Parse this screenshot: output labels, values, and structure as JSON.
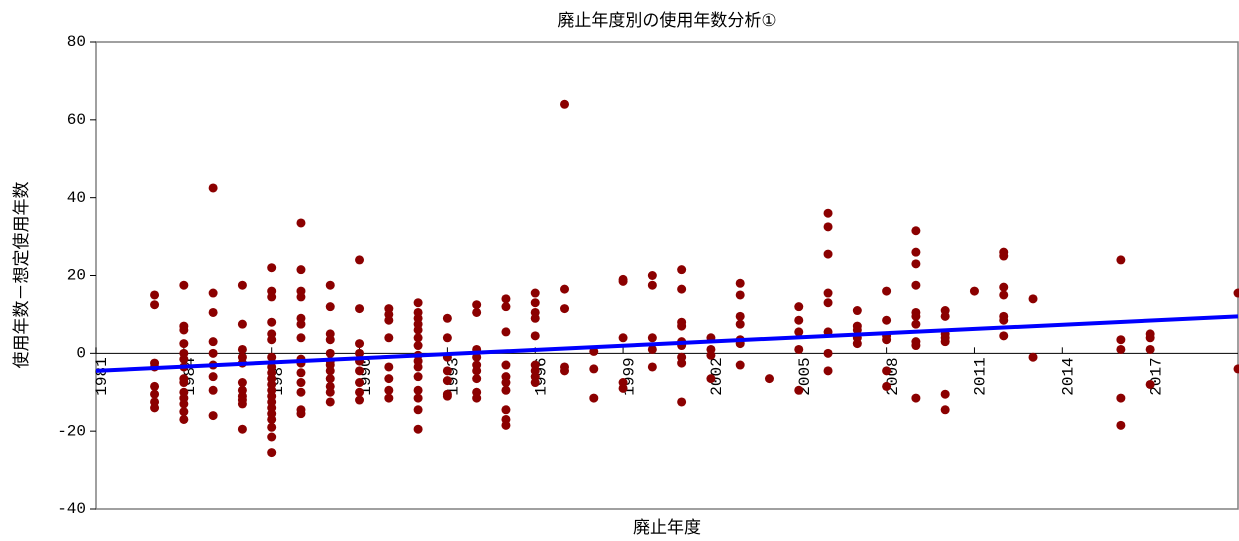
{
  "chart_data": {
    "type": "scatter",
    "title": "廃止年度別の使用年数分析①",
    "x_label": "廃止年度",
    "y_label": "使用年数－想定使用年数",
    "color": "#8b0000",
    "x": [
      1983,
      1983,
      1983,
      1983,
      1983,
      1983,
      1983,
      1983,
      1984,
      1984,
      1984,
      1984,
      1984,
      1984,
      1984,
      1984,
      1984,
      1984,
      1984,
      1984,
      1984,
      1984,
      1985,
      1985,
      1985,
      1985,
      1985,
      1985,
      1985,
      1985,
      1985,
      1986,
      1986,
      1986,
      1986,
      1986,
      1986,
      1986,
      1986,
      1986,
      1986,
      1986,
      1987,
      1987,
      1987,
      1987,
      1987,
      1987,
      1987,
      1987,
      1987,
      1987,
      1987,
      1987,
      1987,
      1987,
      1987,
      1987,
      1987,
      1987,
      1987,
      1987,
      1988,
      1988,
      1988,
      1988,
      1988,
      1988,
      1988,
      1988,
      1988,
      1988,
      1988,
      1988,
      1988,
      1988,
      1989,
      1989,
      1989,
      1989,
      1989,
      1989,
      1989,
      1989,
      1989,
      1989,
      1989,
      1989,
      1990,
      1990,
      1990,
      1990,
      1990,
      1990,
      1990,
      1990,
      1990,
      1991,
      1991,
      1991,
      1991,
      1991,
      1991,
      1991,
      1991,
      1992,
      1992,
      1992,
      1992,
      1992,
      1992,
      1992,
      1992,
      1992,
      1992,
      1992,
      1992,
      1992,
      1992,
      1992,
      1993,
      1993,
      1993,
      1993,
      1993,
      1993,
      1993,
      1994,
      1994,
      1994,
      1994,
      1994,
      1994,
      1994,
      1994,
      1994,
      1995,
      1995,
      1995,
      1995,
      1995,
      1995,
      1995,
      1995,
      1995,
      1995,
      1996,
      1996,
      1996,
      1996,
      1996,
      1996,
      1996,
      1996,
      1996,
      1997,
      1997,
      1997,
      1997,
      1997,
      1998,
      1998,
      1998,
      1999,
      1999,
      1999,
      1999,
      1999,
      2000,
      2000,
      2000,
      2000,
      2000,
      2001,
      2001,
      2001,
      2001,
      2001,
      2001,
      2001,
      2001,
      2001,
      2002,
      2002,
      2002,
      2002,
      2003,
      2003,
      2003,
      2003,
      2003,
      2003,
      2003,
      2004,
      2005,
      2005,
      2005,
      2005,
      2005,
      2006,
      2006,
      2006,
      2006,
      2006,
      2006,
      2006,
      2006,
      2007,
      2007,
      2007,
      2007,
      2007,
      2008,
      2008,
      2008,
      2008,
      2008,
      2008,
      2009,
      2009,
      2009,
      2009,
      2009,
      2009,
      2009,
      2009,
      2009,
      2009,
      2010,
      2010,
      2010,
      2010,
      2010,
      2010,
      2010,
      2011,
      2012,
      2012,
      2012,
      2012,
      2012,
      2012,
      2012,
      2013,
      2013,
      2016,
      2016,
      2016,
      2016,
      2016,
      2017,
      2017,
      2017,
      2017,
      2020,
      2020
    ],
    "values": [
      15,
      12.5,
      -2.5,
      -3.5,
      -8.5,
      -10.5,
      -12.5,
      -14,
      17.5,
      7,
      6,
      2.5,
      0,
      -1.5,
      -3.5,
      -6.5,
      -7.5,
      -10,
      -11.5,
      -13,
      -15,
      -17,
      42.5,
      15.5,
      10.5,
      3,
      0,
      -3,
      -6,
      -9.5,
      -16,
      17.5,
      7.5,
      1,
      -1,
      -2.5,
      -7.5,
      -9.5,
      -11,
      -12,
      -13,
      -19.5,
      22,
      16,
      14.5,
      8,
      5,
      3.5,
      -1,
      -3.5,
      -5,
      -6.5,
      -8,
      -9.5,
      -11,
      -12.5,
      -14,
      -15.5,
      -17,
      -19,
      -21.5,
      -25.5,
      33.5,
      21.5,
      16,
      14.5,
      9,
      7.5,
      4,
      -1.5,
      -2.5,
      -5,
      -7.5,
      -10,
      -14.5,
      -15.5,
      17.5,
      12,
      5,
      3.5,
      0,
      -2,
      -3,
      -4.5,
      -6.5,
      -8.5,
      -10,
      -12.5,
      24,
      11.5,
      2.5,
      0,
      -2,
      -4.5,
      -7.5,
      -10,
      -12,
      11.5,
      10,
      8.5,
      4,
      -3.5,
      -6.5,
      -9.5,
      -11.5,
      13,
      10.5,
      9,
      7.5,
      6,
      4,
      2,
      -0.5,
      -2,
      -3.5,
      -6,
      -9.5,
      -11.5,
      -14.5,
      -19.5,
      9,
      4,
      -1,
      -4.5,
      -7,
      -10.5,
      -11,
      12.5,
      10.5,
      1,
      -1,
      -3,
      -4.5,
      -6.5,
      -10,
      -11.5,
      14,
      12,
      5.5,
      -3,
      -6,
      -7.5,
      -9.5,
      -14.5,
      -17,
      -18.5,
      15.5,
      13,
      10.5,
      9,
      4.5,
      -3,
      -4.5,
      -6,
      -7.5,
      64,
      16.5,
      11.5,
      -3.5,
      -4.5,
      0.5,
      -4,
      -11.5,
      19,
      18.5,
      4,
      -7.5,
      -9,
      20,
      17.5,
      4,
      1,
      -3.5,
      21.5,
      16.5,
      8,
      7,
      3,
      2,
      -1,
      -2.5,
      -12.5,
      4,
      1,
      -0.5,
      -6.5,
      18,
      15,
      9.5,
      7.5,
      3.5,
      2.5,
      -3,
      -6.5,
      12,
      8.5,
      5.5,
      1,
      -9.5,
      36,
      32.5,
      25.5,
      15.5,
      13,
      5.5,
      0,
      -4.5,
      11,
      7,
      6,
      4,
      2.5,
      16,
      8.5,
      4.5,
      3.5,
      -4.5,
      -8.5,
      31.5,
      26,
      23,
      17.5,
      10.5,
      9.5,
      7.5,
      3,
      2,
      -11.5,
      11,
      9.5,
      5,
      4,
      3,
      -10.5,
      -14.5,
      16,
      26,
      25,
      17,
      15,
      9.5,
      8.5,
      4.5,
      14,
      -1,
      24,
      3.5,
      1,
      -11.5,
      -18.5,
      5,
      4,
      1,
      -8,
      15.5,
      -4
    ],
    "trendline": {
      "color": "#0000ff",
      "x": [
        1981,
        2020
      ],
      "values": [
        -4.5,
        9.5
      ]
    },
    "xlim": [
      1981,
      2020
    ],
    "xticks": [
      1981,
      1984,
      1987,
      1990,
      1993,
      1996,
      1999,
      2002,
      2005,
      2008,
      2011,
      2014,
      2017
    ],
    "ylim": [
      -40,
      80
    ],
    "yticks": [
      -40,
      -20,
      0,
      20,
      40,
      60,
      80
    ]
  }
}
